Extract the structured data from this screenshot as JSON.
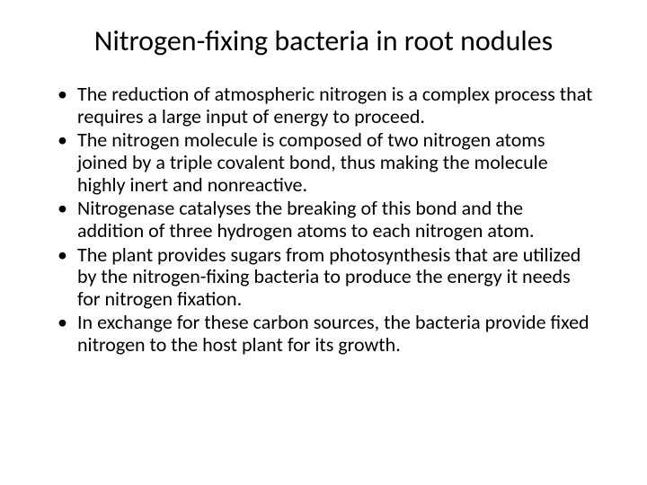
{
  "slide": {
    "title": "Nitrogen-fixing bacteria in root nodules",
    "bullets": [
      "The reduction of atmospheric nitrogen is a complex process that requires a large input of energy to proceed.",
      "The nitrogen molecule is composed of two nitrogen atoms joined by a triple covalent bond, thus making the molecule highly inert and nonreactive.",
      "Nitrogenase catalyses the breaking of this bond and the addition of three hydrogen atoms to each nitrogen atom.",
      "The plant provides sugars from photosynthesis that are utilized by the nitrogen-fixing bacteria to produce the energy it needs for nitrogen fixation.",
      "In exchange for these carbon sources, the bacteria provide fixed nitrogen to the host plant for its growth."
    ],
    "background_color": "#ffffff",
    "text_color": "#000000",
    "title_fontsize": 32,
    "body_fontsize": 22,
    "font_family": "Calibri"
  }
}
